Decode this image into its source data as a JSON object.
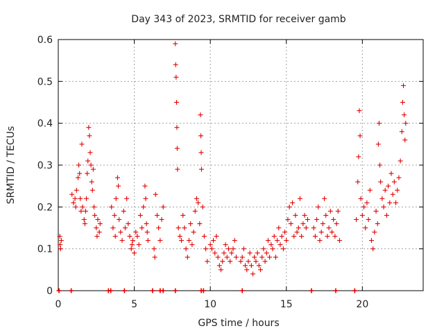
{
  "chart_data": {
    "type": "scatter",
    "title": "Day 343 of 2023, SRMTID for receiver gamb",
    "xlabel": "GPS time / hours",
    "ylabel": "SRMTID / TECUs",
    "xlim": [
      0,
      24
    ],
    "ylim": [
      0,
      0.6
    ],
    "x_ticks": [
      0,
      5,
      10,
      15,
      20
    ],
    "y_ticks": [
      0,
      0.1,
      0.2,
      0.3,
      0.4,
      0.5,
      0.6
    ],
    "x_tick_labels": [
      "0",
      "5",
      "10",
      "15",
      "20"
    ],
    "y_tick_labels": [
      "0",
      "0.1",
      "0.2",
      "0.3",
      "0.4",
      "0.5",
      "0.6"
    ],
    "grid": true,
    "marker": "plus",
    "color": "#e00000",
    "series": [
      {
        "name": "SRMTID",
        "points": [
          [
            0.1,
            0.13
          ],
          [
            0.12,
            0.11
          ],
          [
            0.15,
            0.1
          ],
          [
            0.2,
            0.12
          ],
          [
            0.9,
            0.23
          ],
          [
            1.0,
            0.21
          ],
          [
            1.1,
            0.22
          ],
          [
            1.15,
            0.2
          ],
          [
            1.2,
            0.24
          ],
          [
            1.3,
            0.27
          ],
          [
            1.35,
            0.3
          ],
          [
            1.4,
            0.28
          ],
          [
            1.45,
            0.22
          ],
          [
            1.5,
            0.19
          ],
          [
            1.55,
            0.35
          ],
          [
            1.6,
            0.2
          ],
          [
            1.7,
            0.17
          ],
          [
            1.75,
            0.16
          ],
          [
            1.8,
            0.19
          ],
          [
            1.85,
            0.22
          ],
          [
            1.9,
            0.28
          ],
          [
            1.95,
            0.31
          ],
          [
            2.0,
            0.39
          ],
          [
            2.05,
            0.37
          ],
          [
            2.1,
            0.33
          ],
          [
            2.15,
            0.3
          ],
          [
            2.2,
            0.26
          ],
          [
            2.25,
            0.24
          ],
          [
            2.3,
            0.29
          ],
          [
            2.35,
            0.2
          ],
          [
            2.4,
            0.18
          ],
          [
            2.5,
            0.15
          ],
          [
            2.55,
            0.13
          ],
          [
            2.6,
            0.17
          ],
          [
            2.7,
            0.14
          ],
          [
            2.75,
            0.16
          ],
          [
            3.5,
            0.2
          ],
          [
            3.6,
            0.15
          ],
          [
            3.7,
            0.18
          ],
          [
            3.75,
            0.13
          ],
          [
            3.8,
            0.22
          ],
          [
            3.9,
            0.27
          ],
          [
            3.95,
            0.25
          ],
          [
            4.0,
            0.17
          ],
          [
            4.1,
            0.14
          ],
          [
            4.2,
            0.12
          ],
          [
            4.3,
            0.19
          ],
          [
            4.4,
            0.15
          ],
          [
            4.5,
            0.22
          ],
          [
            4.6,
            0.16
          ],
          [
            4.7,
            0.13
          ],
          [
            4.8,
            0.1
          ],
          [
            4.85,
            0.11
          ],
          [
            4.9,
            0.12
          ],
          [
            5.0,
            0.09
          ],
          [
            5.1,
            0.14
          ],
          [
            5.2,
            0.13
          ],
          [
            5.3,
            0.11
          ],
          [
            5.4,
            0.18
          ],
          [
            5.5,
            0.15
          ],
          [
            5.6,
            0.2
          ],
          [
            5.7,
            0.25
          ],
          [
            5.75,
            0.22
          ],
          [
            5.8,
            0.16
          ],
          [
            5.85,
            0.14
          ],
          [
            5.9,
            0.12
          ],
          [
            6.3,
            0.1
          ],
          [
            6.35,
            0.08
          ],
          [
            6.4,
            0.23
          ],
          [
            6.5,
            0.18
          ],
          [
            6.6,
            0.15
          ],
          [
            6.7,
            0.12
          ],
          [
            6.8,
            0.17
          ],
          [
            6.9,
            0.2
          ],
          [
            7.7,
            0.59
          ],
          [
            7.72,
            0.54
          ],
          [
            7.75,
            0.51
          ],
          [
            7.78,
            0.45
          ],
          [
            7.8,
            0.39
          ],
          [
            7.82,
            0.34
          ],
          [
            7.84,
            0.29
          ],
          [
            7.9,
            0.15
          ],
          [
            8.0,
            0.13
          ],
          [
            8.1,
            0.12
          ],
          [
            8.2,
            0.18
          ],
          [
            8.3,
            0.15
          ],
          [
            8.4,
            0.1
          ],
          [
            8.5,
            0.08
          ],
          [
            8.6,
            0.12
          ],
          [
            8.7,
            0.16
          ],
          [
            8.8,
            0.11
          ],
          [
            8.9,
            0.14
          ],
          [
            9.0,
            0.19
          ],
          [
            9.1,
            0.22
          ],
          [
            9.2,
            0.21
          ],
          [
            9.3,
            0.16
          ],
          [
            9.35,
            0.42
          ],
          [
            9.38,
            0.37
          ],
          [
            9.4,
            0.33
          ],
          [
            9.42,
            0.29
          ],
          [
            9.5,
            0.2
          ],
          [
            9.6,
            0.13
          ],
          [
            9.7,
            0.1
          ],
          [
            9.8,
            0.07
          ],
          [
            10.0,
            0.11
          ],
          [
            10.1,
            0.1
          ],
          [
            10.2,
            0.12
          ],
          [
            10.3,
            0.09
          ],
          [
            10.4,
            0.13
          ],
          [
            10.5,
            0.08
          ],
          [
            10.6,
            0.06
          ],
          [
            10.7,
            0.05
          ],
          [
            10.8,
            0.07
          ],
          [
            10.9,
            0.09
          ],
          [
            11.0,
            0.11
          ],
          [
            11.1,
            0.08
          ],
          [
            11.2,
            0.1
          ],
          [
            11.3,
            0.07
          ],
          [
            11.4,
            0.09
          ],
          [
            11.5,
            0.1
          ],
          [
            11.6,
            0.12
          ],
          [
            11.7,
            0.08
          ],
          [
            12.0,
            0.07
          ],
          [
            12.1,
            0.08
          ],
          [
            12.2,
            0.1
          ],
          [
            12.3,
            0.06
          ],
          [
            12.4,
            0.05
          ],
          [
            12.5,
            0.07
          ],
          [
            12.6,
            0.09
          ],
          [
            12.7,
            0.06
          ],
          [
            12.8,
            0.04
          ],
          [
            12.9,
            0.08
          ],
          [
            13.0,
            0.07
          ],
          [
            13.1,
            0.09
          ],
          [
            13.2,
            0.06
          ],
          [
            13.3,
            0.05
          ],
          [
            13.4,
            0.08
          ],
          [
            13.5,
            0.1
          ],
          [
            13.6,
            0.07
          ],
          [
            13.7,
            0.09
          ],
          [
            13.8,
            0.12
          ],
          [
            13.9,
            0.08
          ],
          [
            14.0,
            0.11
          ],
          [
            14.1,
            0.1
          ],
          [
            14.2,
            0.13
          ],
          [
            14.3,
            0.08
          ],
          [
            14.4,
            0.12
          ],
          [
            14.5,
            0.15
          ],
          [
            14.6,
            0.11
          ],
          [
            14.7,
            0.13
          ],
          [
            14.8,
            0.1
          ],
          [
            14.9,
            0.14
          ],
          [
            15.0,
            0.12
          ],
          [
            15.1,
            0.17
          ],
          [
            15.2,
            0.2
          ],
          [
            15.3,
            0.16
          ],
          [
            15.4,
            0.21
          ],
          [
            15.5,
            0.13
          ],
          [
            15.6,
            0.18
          ],
          [
            15.7,
            0.14
          ],
          [
            15.8,
            0.15
          ],
          [
            15.9,
            0.22
          ],
          [
            16.0,
            0.13
          ],
          [
            16.1,
            0.16
          ],
          [
            16.2,
            0.18
          ],
          [
            16.3,
            0.15
          ],
          [
            16.4,
            0.17
          ],
          [
            16.8,
            0.15
          ],
          [
            16.9,
            0.13
          ],
          [
            17.0,
            0.17
          ],
          [
            17.1,
            0.2
          ],
          [
            17.2,
            0.12
          ],
          [
            17.3,
            0.14
          ],
          [
            17.4,
            0.16
          ],
          [
            17.5,
            0.22
          ],
          [
            17.6,
            0.18
          ],
          [
            17.7,
            0.13
          ],
          [
            17.8,
            0.15
          ],
          [
            17.9,
            0.19
          ],
          [
            18.0,
            0.14
          ],
          [
            18.1,
            0.17
          ],
          [
            18.2,
            0.13
          ],
          [
            18.3,
            0.16
          ],
          [
            18.4,
            0.19
          ],
          [
            18.5,
            0.12
          ],
          [
            19.6,
            0.17
          ],
          [
            19.7,
            0.26
          ],
          [
            19.75,
            0.32
          ],
          [
            19.8,
            0.43
          ],
          [
            19.85,
            0.37
          ],
          [
            19.9,
            0.22
          ],
          [
            20.0,
            0.18
          ],
          [
            20.1,
            0.2
          ],
          [
            20.2,
            0.15
          ],
          [
            20.3,
            0.21
          ],
          [
            20.4,
            0.17
          ],
          [
            20.5,
            0.24
          ],
          [
            20.6,
            0.12
          ],
          [
            20.7,
            0.1
          ],
          [
            20.8,
            0.14
          ],
          [
            20.9,
            0.19
          ],
          [
            21.0,
            0.16
          ],
          [
            21.05,
            0.35
          ],
          [
            21.1,
            0.4
          ],
          [
            21.15,
            0.3
          ],
          [
            21.2,
            0.26
          ],
          [
            21.3,
            0.22
          ],
          [
            21.4,
            0.2
          ],
          [
            21.5,
            0.24
          ],
          [
            21.6,
            0.18
          ],
          [
            21.7,
            0.25
          ],
          [
            21.8,
            0.21
          ],
          [
            21.9,
            0.28
          ],
          [
            22.0,
            0.23
          ],
          [
            22.1,
            0.26
          ],
          [
            22.2,
            0.21
          ],
          [
            22.3,
            0.24
          ],
          [
            22.4,
            0.27
          ],
          [
            22.5,
            0.31
          ],
          [
            22.6,
            0.38
          ],
          [
            22.65,
            0.45
          ],
          [
            22.7,
            0.49
          ],
          [
            22.75,
            0.42
          ],
          [
            22.8,
            0.36
          ],
          [
            22.85,
            0.4
          ]
        ]
      }
    ],
    "zero_markers_x": [
      0.05,
      0.85,
      3.3,
      3.45,
      4.35,
      6.2,
      6.7,
      6.9,
      7.7,
      9.4,
      9.55,
      12.1,
      16.65,
      18.25,
      19.5
    ]
  }
}
